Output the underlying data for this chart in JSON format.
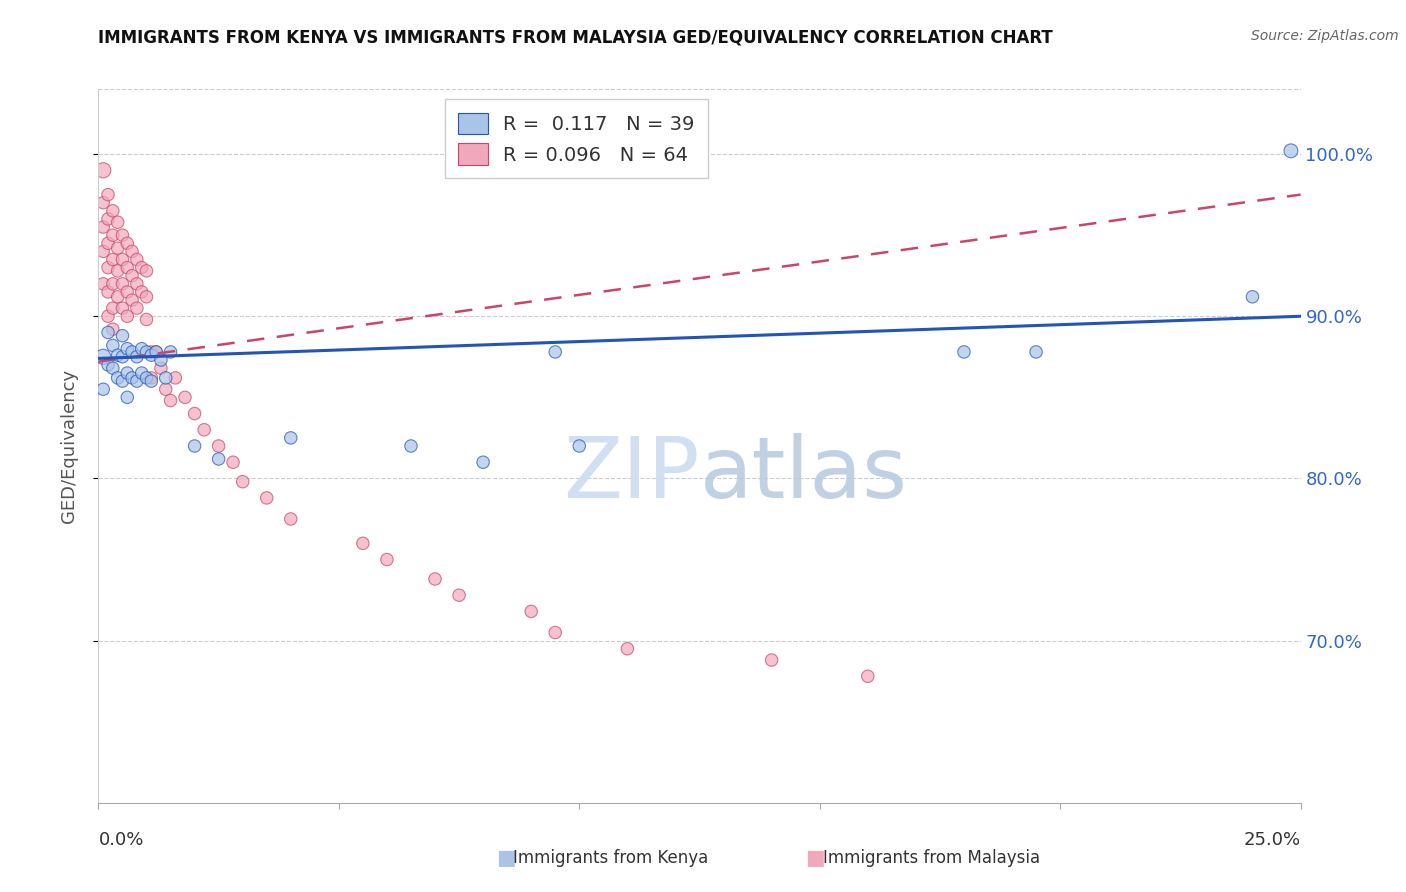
{
  "title": "IMMIGRANTS FROM KENYA VS IMMIGRANTS FROM MALAYSIA GED/EQUIVALENCY CORRELATION CHART",
  "source": "Source: ZipAtlas.com",
  "ylabel": "GED/Equivalency",
  "xlim": [
    0.0,
    0.25
  ],
  "ylim": [
    0.6,
    1.04
  ],
  "yticks": [
    0.7,
    0.8,
    0.9,
    1.0
  ],
  "ytick_labels": [
    "70.0%",
    "80.0%",
    "90.0%",
    "100.0%"
  ],
  "legend_kenya_R": "0.117",
  "legend_kenya_N": "39",
  "legend_malaysia_R": "0.096",
  "legend_malaysia_N": "64",
  "kenya_color": "#aac4e8",
  "malaysia_color": "#f2a8bc",
  "kenya_line_color": "#2255bb",
  "malaysia_line_color": "#cc4466",
  "watermark_zip": "ZIP",
  "watermark_atlas": "atlas",
  "kenya_x": [
    0.001,
    0.001,
    0.002,
    0.002,
    0.003,
    0.003,
    0.004,
    0.004,
    0.005,
    0.005,
    0.005,
    0.006,
    0.006,
    0.006,
    0.007,
    0.007,
    0.008,
    0.008,
    0.009,
    0.009,
    0.01,
    0.01,
    0.011,
    0.011,
    0.012,
    0.013,
    0.014,
    0.015,
    0.02,
    0.025,
    0.04,
    0.065,
    0.08,
    0.095,
    0.1,
    0.18,
    0.195,
    0.24,
    0.248
  ],
  "kenya_y": [
    0.875,
    0.855,
    0.89,
    0.87,
    0.882,
    0.868,
    0.876,
    0.862,
    0.888,
    0.875,
    0.86,
    0.88,
    0.865,
    0.85,
    0.878,
    0.862,
    0.875,
    0.86,
    0.88,
    0.865,
    0.878,
    0.862,
    0.876,
    0.86,
    0.878,
    0.873,
    0.862,
    0.878,
    0.82,
    0.812,
    0.825,
    0.82,
    0.81,
    0.878,
    0.82,
    0.878,
    0.878,
    0.912,
    1.002
  ],
  "kenya_sizes": [
    120,
    80,
    80,
    80,
    80,
    80,
    80,
    80,
    80,
    80,
    80,
    80,
    80,
    80,
    80,
    80,
    80,
    80,
    80,
    80,
    80,
    80,
    80,
    80,
    80,
    80,
    80,
    80,
    80,
    80,
    80,
    80,
    80,
    80,
    80,
    80,
    80,
    80,
    100
  ],
  "malaysia_x": [
    0.001,
    0.001,
    0.001,
    0.001,
    0.001,
    0.002,
    0.002,
    0.002,
    0.002,
    0.002,
    0.002,
    0.003,
    0.003,
    0.003,
    0.003,
    0.003,
    0.003,
    0.004,
    0.004,
    0.004,
    0.004,
    0.005,
    0.005,
    0.005,
    0.005,
    0.006,
    0.006,
    0.006,
    0.006,
    0.007,
    0.007,
    0.007,
    0.008,
    0.008,
    0.008,
    0.009,
    0.009,
    0.01,
    0.01,
    0.01,
    0.011,
    0.011,
    0.012,
    0.013,
    0.014,
    0.015,
    0.016,
    0.018,
    0.02,
    0.022,
    0.025,
    0.028,
    0.03,
    0.035,
    0.04,
    0.055,
    0.06,
    0.07,
    0.075,
    0.09,
    0.095,
    0.11,
    0.14,
    0.16
  ],
  "malaysia_y": [
    0.99,
    0.97,
    0.955,
    0.94,
    0.92,
    0.975,
    0.96,
    0.945,
    0.93,
    0.915,
    0.9,
    0.965,
    0.95,
    0.935,
    0.92,
    0.905,
    0.892,
    0.958,
    0.942,
    0.928,
    0.912,
    0.95,
    0.935,
    0.92,
    0.905,
    0.945,
    0.93,
    0.915,
    0.9,
    0.94,
    0.925,
    0.91,
    0.935,
    0.92,
    0.905,
    0.93,
    0.915,
    0.928,
    0.912,
    0.898,
    0.878,
    0.862,
    0.878,
    0.868,
    0.855,
    0.848,
    0.862,
    0.85,
    0.84,
    0.83,
    0.82,
    0.81,
    0.798,
    0.788,
    0.775,
    0.76,
    0.75,
    0.738,
    0.728,
    0.718,
    0.705,
    0.695,
    0.688,
    0.678
  ],
  "malaysia_sizes": [
    120,
    80,
    80,
    80,
    80,
    80,
    80,
    80,
    80,
    80,
    80,
    80,
    80,
    80,
    80,
    80,
    80,
    80,
    80,
    80,
    80,
    80,
    80,
    80,
    80,
    80,
    80,
    80,
    80,
    80,
    80,
    80,
    80,
    80,
    80,
    80,
    80,
    80,
    80,
    80,
    80,
    80,
    80,
    80,
    80,
    80,
    80,
    80,
    80,
    80,
    80,
    80,
    80,
    80,
    80,
    80,
    80,
    80,
    80,
    80,
    80,
    80,
    80,
    80
  ]
}
